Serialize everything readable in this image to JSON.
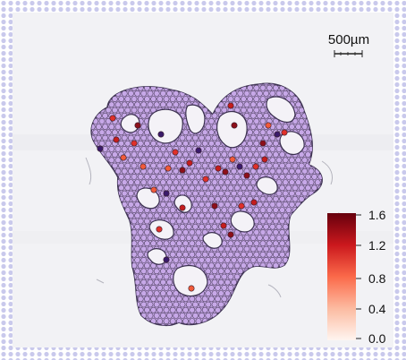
{
  "image": {
    "description": "Spatial transcriptomics spot map over tissue section with continuous color scale",
    "background_color": "#f3f3f6",
    "border_dot_color": "#c9c9ec",
    "spot_fill": "#c7a8e8",
    "spot_outline": "#4a3d5a"
  },
  "scale_bar": {
    "label": "500µm"
  },
  "colorbar": {
    "ticks": [
      "1.6",
      "1.2",
      "0.8",
      "0.4",
      "0.0"
    ],
    "colors": [
      "#fff5f0",
      "#fcbba1",
      "#fb6a4a",
      "#cb181d",
      "#67000d"
    ]
  },
  "highlight_colors": [
    "#e0302a",
    "#c41d1d",
    "#8c0f1a",
    "#f05a3a",
    "#3a1a6a"
  ]
}
